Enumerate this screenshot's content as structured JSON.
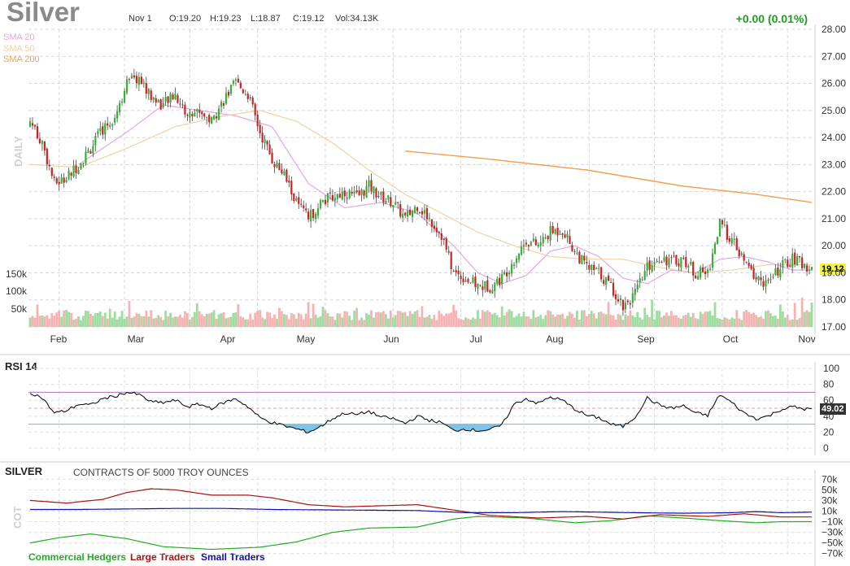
{
  "header": {
    "title": "Silver",
    "date": "Nov 1",
    "open": "O:19.20",
    "high": "H:19.23",
    "low": "L:18.87",
    "close": "C:19.12",
    "volume": "Vol:34.13K",
    "change": "+0.00 (0.01%)"
  },
  "colors": {
    "up": "#33b233",
    "down": "#cc2222",
    "vol_up": "#9fdc9f",
    "vol_down": "#f6b3b3",
    "sma20": "#e6a6e0",
    "sma50": "#f2d2a0",
    "sma200": "#f0a050",
    "rsi_line": "#111111",
    "rsi_upper": "#b070c8",
    "rsi_lower": "#6ab2e0",
    "commercial": "#22aa22",
    "large": "#aa1111",
    "small": "#1111aa"
  },
  "sma_labels": {
    "sma20": "SMA 20",
    "sma50": "SMA 50",
    "sma200": "SMA 200"
  },
  "price_panel": {
    "label": "DAILY",
    "last_value": "19.12"
  },
  "rsi_panel": {
    "title": "RSI 14",
    "last_value": "49.02"
  },
  "cot_panel": {
    "title": "SILVER",
    "subtitle": "CONTRACTS OF 5000 TROY OUNCES",
    "label": "COT",
    "legend": [
      "Commercial Hedgers",
      "Large Traders",
      "Small Traders"
    ]
  },
  "chart_data": [
    {
      "type": "candlestick",
      "x": [
        "Feb",
        "Mar",
        "Apr",
        "May",
        "Jun",
        "Jul",
        "Aug",
        "Sep",
        "Oct",
        "Nov"
      ],
      "y_ticks": [
        "17.00",
        "18.00",
        "19.00",
        "20.00",
        "21.00",
        "22.00",
        "23.00",
        "24.00",
        "25.00",
        "26.00",
        "27.00",
        "28.00"
      ],
      "ylim": [
        17,
        28
      ],
      "volume_ticks": [
        "50k",
        "100k",
        "150k"
      ],
      "series": [
        {
          "name": "Close",
          "knots": [
            [
              0,
              24.6
            ],
            [
              5,
              23.8
            ],
            [
              10,
              22.3
            ],
            [
              15,
              22.5
            ],
            [
              20,
              23.0
            ],
            [
              25,
              23.6
            ],
            [
              30,
              24.3
            ],
            [
              35,
              24.8
            ],
            [
              40,
              26.0
            ],
            [
              45,
              26.2
            ],
            [
              50,
              25.5
            ],
            [
              55,
              25.2
            ],
            [
              60,
              25.6
            ],
            [
              65,
              24.8
            ],
            [
              70,
              25.0
            ],
            [
              75,
              24.6
            ],
            [
              80,
              25.4
            ],
            [
              85,
              26.0
            ],
            [
              90,
              25.6
            ],
            [
              95,
              24.2
            ],
            [
              100,
              23.2
            ],
            [
              105,
              22.6
            ],
            [
              110,
              21.6
            ],
            [
              115,
              21.0
            ],
            [
              120,
              21.6
            ],
            [
              125,
              21.8
            ],
            [
              130,
              22.0
            ],
            [
              135,
              21.8
            ],
            [
              140,
              22.2
            ],
            [
              145,
              21.8
            ],
            [
              150,
              21.6
            ],
            [
              155,
              21.0
            ],
            [
              160,
              21.5
            ],
            [
              165,
              21.0
            ],
            [
              170,
              20.4
            ],
            [
              175,
              19.0
            ],
            [
              180,
              18.8
            ],
            [
              185,
              18.5
            ],
            [
              190,
              18.5
            ],
            [
              195,
              18.8
            ],
            [
              200,
              19.5
            ],
            [
              205,
              20.2
            ],
            [
              210,
              20.0
            ],
            [
              215,
              20.5
            ],
            [
              220,
              20.6
            ],
            [
              225,
              19.8
            ],
            [
              230,
              19.2
            ],
            [
              235,
              19.0
            ],
            [
              240,
              18.5
            ],
            [
              245,
              17.8
            ],
            [
              250,
              18.2
            ],
            [
              255,
              19.2
            ],
            [
              260,
              19.6
            ],
            [
              265,
              19.4
            ],
            [
              270,
              19.5
            ],
            [
              275,
              19.0
            ],
            [
              280,
              19.0
            ],
            [
              285,
              20.8
            ],
            [
              290,
              20.2
            ],
            [
              295,
              19.4
            ],
            [
              300,
              18.8
            ],
            [
              305,
              18.6
            ],
            [
              310,
              19.2
            ],
            [
              315,
              19.5
            ],
            [
              320,
              19.3
            ],
            [
              323,
              19.12
            ]
          ]
        },
        {
          "name": "SMA 20",
          "knots": [
            [
              20,
              23.0
            ],
            [
              40,
              24.2
            ],
            [
              55,
              25.2
            ],
            [
              70,
              25.0
            ],
            [
              85,
              24.8
            ],
            [
              100,
              24.4
            ],
            [
              115,
              22.3
            ],
            [
              130,
              21.4
            ],
            [
              145,
              21.6
            ],
            [
              160,
              21.2
            ],
            [
              175,
              20.0
            ],
            [
              185,
              19.0
            ],
            [
              195,
              18.6
            ],
            [
              205,
              18.9
            ],
            [
              215,
              19.8
            ],
            [
              225,
              20.0
            ],
            [
              235,
              19.6
            ],
            [
              245,
              18.8
            ],
            [
              255,
              18.6
            ],
            [
              265,
              19.1
            ],
            [
              275,
              19.0
            ],
            [
              285,
              19.5
            ],
            [
              295,
              19.6
            ],
            [
              305,
              19.4
            ],
            [
              315,
              19.1
            ],
            [
              323,
              19.1
            ]
          ]
        },
        {
          "name": "SMA 50",
          "knots": [
            [
              0,
              23.0
            ],
            [
              20,
              22.9
            ],
            [
              40,
              23.6
            ],
            [
              60,
              24.4
            ],
            [
              80,
              24.8
            ],
            [
              95,
              25.0
            ],
            [
              110,
              24.6
            ],
            [
              125,
              23.8
            ],
            [
              140,
              22.8
            ],
            [
              155,
              21.9
            ],
            [
              170,
              21.2
            ],
            [
              185,
              20.5
            ],
            [
              200,
              20.0
            ],
            [
              215,
              19.6
            ],
            [
              230,
              19.5
            ],
            [
              245,
              19.5
            ],
            [
              260,
              19.2
            ],
            [
              275,
              19.0
            ],
            [
              290,
              19.1
            ],
            [
              305,
              19.3
            ],
            [
              323,
              19.3
            ]
          ]
        },
        {
          "name": "SMA 200",
          "knots": [
            [
              155,
              23.5
            ],
            [
              190,
              23.2
            ],
            [
              230,
              22.8
            ],
            [
              270,
              22.2
            ],
            [
              300,
              21.9
            ],
            [
              323,
              21.6
            ]
          ]
        }
      ]
    },
    {
      "type": "line",
      "title": "RSI 14",
      "y_ticks": [
        "0",
        "20",
        "40",
        "60",
        "80",
        "100"
      ],
      "ylim": [
        0,
        100
      ],
      "levels": [
        70,
        30
      ],
      "series": [
        {
          "name": "RSI",
          "knots": [
            [
              0,
              70
            ],
            [
              5,
              63
            ],
            [
              10,
              44
            ],
            [
              15,
              47
            ],
            [
              20,
              55
            ],
            [
              25,
              54
            ],
            [
              30,
              62
            ],
            [
              35,
              65
            ],
            [
              40,
              70
            ],
            [
              45,
              67
            ],
            [
              50,
              58
            ],
            [
              55,
              57
            ],
            [
              60,
              60
            ],
            [
              65,
              52
            ],
            [
              70,
              55
            ],
            [
              75,
              50
            ],
            [
              80,
              57
            ],
            [
              85,
              62
            ],
            [
              90,
              52
            ],
            [
              95,
              38
            ],
            [
              100,
              32
            ],
            [
              105,
              28
            ],
            [
              110,
              24
            ],
            [
              115,
              20
            ],
            [
              120,
              27
            ],
            [
              125,
              37
            ],
            [
              130,
              44
            ],
            [
              135,
              42
            ],
            [
              140,
              46
            ],
            [
              145,
              39
            ],
            [
              150,
              37
            ],
            [
              155,
              31
            ],
            [
              160,
              40
            ],
            [
              165,
              35
            ],
            [
              170,
              32
            ],
            [
              175,
              22
            ],
            [
              180,
              24
            ],
            [
              185,
              22
            ],
            [
              190,
              23
            ],
            [
              195,
              29
            ],
            [
              200,
              55
            ],
            [
              205,
              62
            ],
            [
              210,
              56
            ],
            [
              215,
              64
            ],
            [
              220,
              60
            ],
            [
              225,
              49
            ],
            [
              230,
              41
            ],
            [
              235,
              38
            ],
            [
              240,
              30
            ],
            [
              245,
              27
            ],
            [
              250,
              39
            ],
            [
              255,
              63
            ],
            [
              260,
              54
            ],
            [
              265,
              50
            ],
            [
              270,
              53
            ],
            [
              275,
              44
            ],
            [
              280,
              41
            ],
            [
              285,
              67
            ],
            [
              290,
              57
            ],
            [
              295,
              44
            ],
            [
              300,
              37
            ],
            [
              305,
              40
            ],
            [
              310,
              48
            ],
            [
              315,
              52
            ],
            [
              320,
              49
            ],
            [
              323,
              49.02
            ]
          ]
        }
      ]
    },
    {
      "type": "line",
      "title": "COT",
      "y_ticks": [
        "−70k",
        "−50k",
        "−30k",
        "−10k",
        "10k",
        "30k",
        "50k",
        "70k"
      ],
      "ylim": [
        -75,
        75
      ],
      "series": [
        {
          "name": "Commercial Hedgers",
          "knots": [
            [
              0,
              -50
            ],
            [
              12,
              -40
            ],
            [
              25,
              -33
            ],
            [
              40,
              -42
            ],
            [
              55,
              -57
            ],
            [
              75,
              -62
            ],
            [
              95,
              -58
            ],
            [
              110,
              -48
            ],
            [
              125,
              -30
            ],
            [
              140,
              -22
            ],
            [
              160,
              -20
            ],
            [
              175,
              -5
            ],
            [
              185,
              0
            ],
            [
              205,
              -3
            ],
            [
              225,
              -12
            ],
            [
              240,
              -8
            ],
            [
              255,
              1
            ],
            [
              270,
              -3
            ],
            [
              285,
              -8
            ],
            [
              300,
              -12
            ],
            [
              310,
              -10
            ],
            [
              323,
              -10
            ]
          ]
        },
        {
          "name": "Large Traders",
          "knots": [
            [
              0,
              30
            ],
            [
              15,
              25
            ],
            [
              30,
              32
            ],
            [
              40,
              45
            ],
            [
              50,
              52
            ],
            [
              60,
              50
            ],
            [
              75,
              40
            ],
            [
              90,
              40
            ],
            [
              100,
              35
            ],
            [
              115,
              22
            ],
            [
              130,
              18
            ],
            [
              160,
              22
            ],
            [
              175,
              12
            ],
            [
              190,
              2
            ],
            [
              210,
              -3
            ],
            [
              230,
              0
            ],
            [
              245,
              -5
            ],
            [
              260,
              3
            ],
            [
              280,
              0
            ],
            [
              295,
              5
            ],
            [
              310,
              -1
            ],
            [
              323,
              -1
            ]
          ]
        },
        {
          "name": "Small Traders",
          "knots": [
            [
              0,
              13
            ],
            [
              20,
              13
            ],
            [
              40,
              14
            ],
            [
              60,
              15
            ],
            [
              80,
              15
            ],
            [
              100,
              13
            ],
            [
              130,
              12
            ],
            [
              160,
              11
            ],
            [
              180,
              7
            ],
            [
              200,
              7
            ],
            [
              220,
              9
            ],
            [
              250,
              7
            ],
            [
              270,
              6
            ],
            [
              290,
              7
            ],
            [
              300,
              9
            ],
            [
              310,
              7
            ],
            [
              323,
              8
            ]
          ]
        }
      ]
    }
  ]
}
